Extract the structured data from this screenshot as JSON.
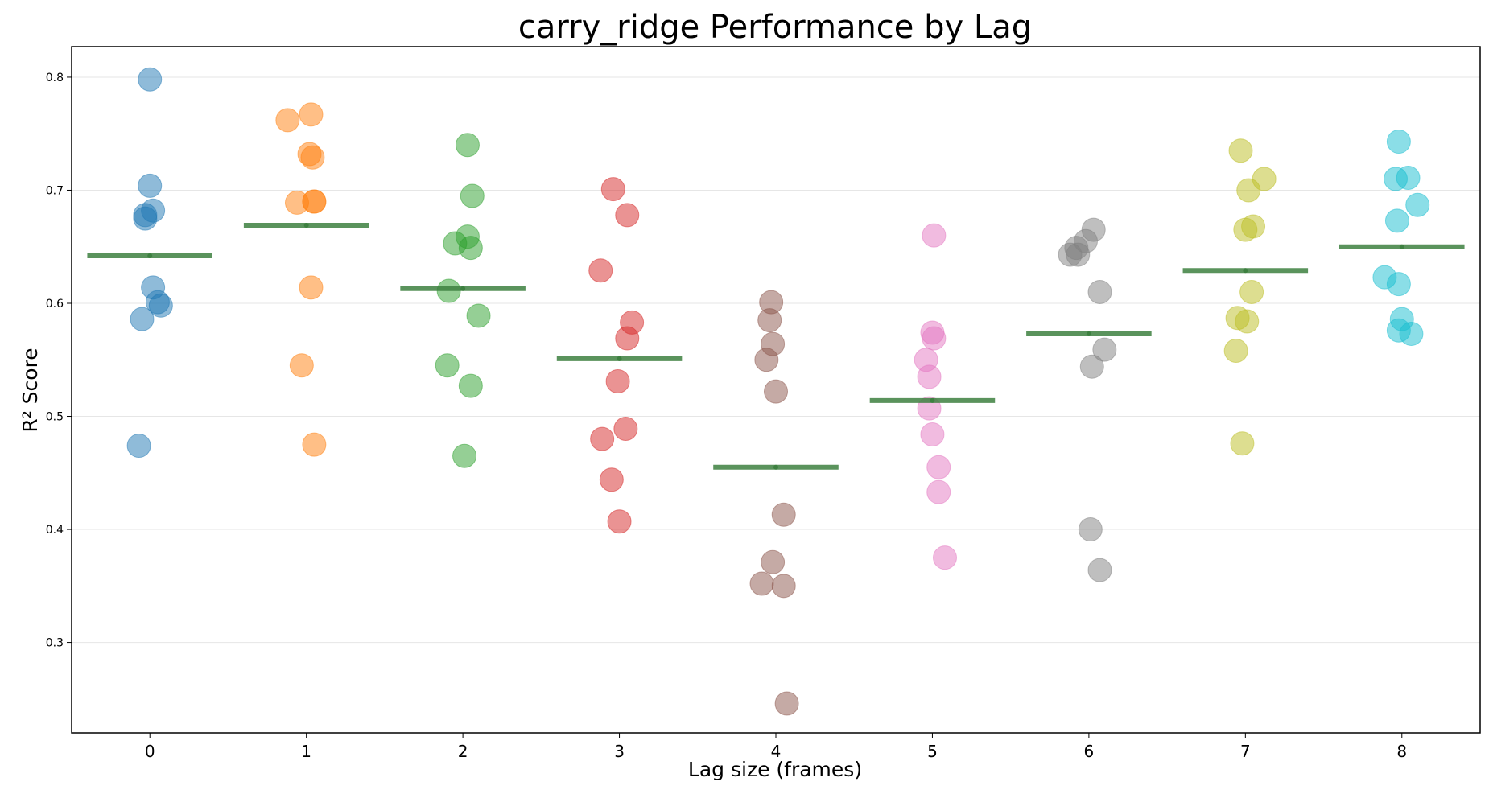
{
  "chart_data": {
    "type": "scatter",
    "title": "carry_ridge Performance by Lag",
    "xlabel": "Lag size (frames)",
    "ylabel": "R² Score",
    "xlim": [
      -0.5,
      8.5
    ],
    "ylim": [
      0.22,
      0.827
    ],
    "x_ticks": [
      0,
      1,
      2,
      3,
      4,
      5,
      6,
      7,
      8
    ],
    "y_ticks": [
      0.3,
      0.4,
      0.5,
      0.6,
      0.7,
      0.8
    ],
    "x_tick_labels": [
      "0",
      "1",
      "2",
      "3",
      "4",
      "5",
      "6",
      "7",
      "8"
    ],
    "y_tick_labels": [
      "0.3",
      "0.4",
      "0.5",
      "0.6",
      "0.7",
      "0.8"
    ],
    "grid": "horizontal",
    "mean_line_color": "#3d8040",
    "series": [
      {
        "lag": 0,
        "color": "#1f77b4",
        "mean": 0.642,
        "x": [
          0.0,
          0.0,
          0.02,
          -0.03,
          -0.03,
          0.02,
          0.05,
          0.07,
          -0.05,
          -0.07
        ],
        "y": [
          0.798,
          0.704,
          0.682,
          0.678,
          0.675,
          0.614,
          0.601,
          0.598,
          0.586,
          0.474
        ]
      },
      {
        "lag": 1,
        "color": "#ff7f0e",
        "mean": 0.669,
        "x": [
          0.88,
          1.03,
          1.02,
          1.04,
          0.94,
          1.05,
          1.05,
          1.03,
          0.97,
          1.05
        ],
        "y": [
          0.762,
          0.767,
          0.732,
          0.729,
          0.689,
          0.69,
          0.69,
          0.614,
          0.545,
          0.475
        ]
      },
      {
        "lag": 2,
        "color": "#2ca02c",
        "mean": 0.613,
        "x": [
          2.03,
          2.06,
          2.03,
          1.95,
          2.05,
          1.91,
          2.1,
          1.9,
          2.05,
          2.01
        ],
        "y": [
          0.74,
          0.695,
          0.659,
          0.653,
          0.649,
          0.611,
          0.589,
          0.545,
          0.527,
          0.465
        ]
      },
      {
        "lag": 3,
        "color": "#d62728",
        "mean": 0.551,
        "x": [
          2.96,
          3.05,
          2.88,
          3.08,
          3.05,
          2.99,
          2.89,
          3.04,
          2.95,
          3.0
        ],
        "y": [
          0.701,
          0.678,
          0.629,
          0.583,
          0.569,
          0.531,
          0.48,
          0.489,
          0.444,
          0.407
        ]
      },
      {
        "lag": 4,
        "color": "#8c564b",
        "mean": 0.455,
        "x": [
          3.97,
          3.96,
          3.98,
          3.94,
          4.0,
          4.05,
          3.98,
          3.91,
          4.05,
          4.07
        ],
        "y": [
          0.601,
          0.585,
          0.564,
          0.55,
          0.522,
          0.413,
          0.371,
          0.352,
          0.35,
          0.246
        ]
      },
      {
        "lag": 5,
        "color": "#e377c2",
        "mean": 0.514,
        "x": [
          5.01,
          5.0,
          5.01,
          4.96,
          4.98,
          4.98,
          5.0,
          5.04,
          5.04,
          5.08
        ],
        "y": [
          0.66,
          0.574,
          0.569,
          0.55,
          0.535,
          0.507,
          0.484,
          0.455,
          0.433,
          0.375
        ]
      },
      {
        "lag": 6,
        "color": "#7f7f7f",
        "mean": 0.573,
        "x": [
          6.03,
          5.98,
          5.92,
          5.88,
          5.93,
          6.07,
          6.1,
          6.02,
          6.01,
          6.07
        ],
        "y": [
          0.665,
          0.655,
          0.649,
          0.643,
          0.643,
          0.61,
          0.559,
          0.544,
          0.4,
          0.364
        ]
      },
      {
        "lag": 7,
        "color": "#bcbd22",
        "mean": 0.629,
        "x": [
          6.97,
          7.12,
          7.02,
          7.05,
          7.0,
          7.04,
          6.95,
          7.01,
          6.94,
          6.98
        ],
        "y": [
          0.735,
          0.71,
          0.7,
          0.668,
          0.665,
          0.61,
          0.587,
          0.584,
          0.558,
          0.476
        ]
      },
      {
        "lag": 8,
        "color": "#17becf",
        "mean": 0.65,
        "x": [
          7.98,
          7.96,
          8.04,
          8.1,
          7.97,
          7.89,
          7.98,
          8.0,
          7.98,
          8.06
        ],
        "y": [
          0.743,
          0.71,
          0.711,
          0.687,
          0.673,
          0.623,
          0.617,
          0.586,
          0.576,
          0.573
        ]
      }
    ]
  }
}
